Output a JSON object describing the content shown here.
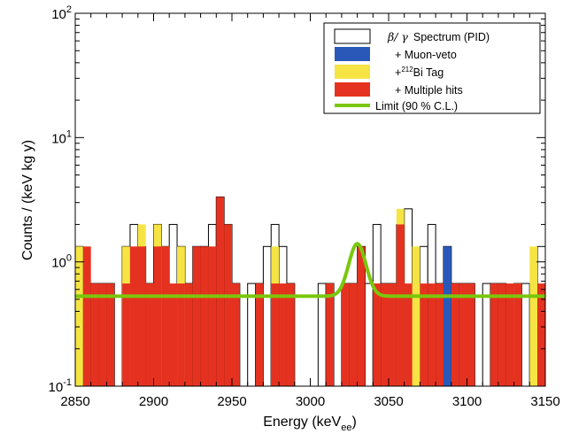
{
  "chart_data": {
    "type": "bar",
    "xlabel": "Energy (keV",
    "xlabel_sub": "ee",
    "xlabel_close": ")",
    "ylabel": "Counts / (keV kg y)",
    "xlim": [
      2850,
      3150
    ],
    "ylim": [
      0.1,
      100
    ],
    "yscale": "log",
    "bin_width": 5,
    "x_ticks": [
      "2850",
      "2900",
      "2950",
      "3000",
      "3050",
      "3100",
      "3150"
    ],
    "y_ticks": [
      {
        "base": "10",
        "exp": "-1"
      },
      {
        "base": "10",
        "exp": "0"
      },
      {
        "base": "10",
        "exp": "1"
      },
      {
        "base": "10",
        "exp": "2"
      }
    ],
    "legend_position": "top-right",
    "legend": [
      {
        "label": "Spectrum (PID)",
        "greek": "β/ γ",
        "color": "#ffffff"
      },
      {
        "label": "+ Muon-veto",
        "color": "#2a58b8"
      },
      {
        "label": "Bi Tag",
        "prefix": "+",
        "sup": "212",
        "color": "#f5e444"
      },
      {
        "label": "+ Multiple hits",
        "color": "#e53220"
      },
      {
        "label": "Limit (90 % C.L.)",
        "color": "#7ac70c"
      }
    ],
    "series": [
      {
        "name": "Spectrum (PID)",
        "color": "#ffffff",
        "bins": [
          [
            2850,
            1.33
          ],
          [
            2855,
            0.67
          ],
          [
            2860,
            0.67
          ],
          [
            2865,
            0.67
          ],
          [
            2870,
            0.67
          ],
          [
            2880,
            1.33
          ],
          [
            2885,
            2.0
          ],
          [
            2890,
            1.33
          ],
          [
            2895,
            0.67
          ],
          [
            2900,
            2.0
          ],
          [
            2905,
            1.33
          ],
          [
            2910,
            2.0
          ],
          [
            2915,
            1.33
          ],
          [
            2920,
            0.67
          ],
          [
            2925,
            1.33
          ],
          [
            2930,
            1.33
          ],
          [
            2935,
            2.0
          ],
          [
            2940,
            3.33
          ],
          [
            2945,
            2.0
          ],
          [
            2950,
            0.67
          ],
          [
            2960,
            0.67
          ],
          [
            2965,
            0.67
          ],
          [
            2970,
            1.33
          ],
          [
            2975,
            2.0
          ],
          [
            2980,
            1.33
          ],
          [
            2985,
            0.67
          ],
          [
            3005,
            0.67
          ],
          [
            3010,
            0.67
          ],
          [
            3020,
            0.67
          ],
          [
            3025,
            0.67
          ],
          [
            3030,
            1.33
          ],
          [
            3035,
            0.67
          ],
          [
            3040,
            2.0
          ],
          [
            3045,
            0.67
          ],
          [
            3050,
            0.67
          ],
          [
            3055,
            2.0
          ],
          [
            3060,
            2.67
          ],
          [
            3065,
            0.67
          ],
          [
            3070,
            1.33
          ],
          [
            3075,
            2.0
          ],
          [
            3080,
            0.67
          ],
          [
            3085,
            1.33
          ],
          [
            3090,
            0.67
          ],
          [
            3095,
            0.67
          ],
          [
            3100,
            0.67
          ],
          [
            3110,
            0.67
          ],
          [
            3115,
            0.67
          ],
          [
            3120,
            0.67
          ],
          [
            3130,
            0.67
          ],
          [
            3135,
            0.67
          ],
          [
            3140,
            0.67
          ],
          [
            3145,
            1.33
          ]
        ]
      },
      {
        "name": "+ Muon-veto",
        "color": "#2a58b8",
        "bins": [
          [
            3085,
            1.33
          ]
        ]
      },
      {
        "name": "Bi Tag",
        "color": "#f5e444",
        "bins": [
          [
            2850,
            1.33
          ],
          [
            2880,
            1.33
          ],
          [
            2890,
            2.0
          ],
          [
            2900,
            2.0
          ],
          [
            2905,
            1.33
          ],
          [
            2915,
            1.33
          ],
          [
            2975,
            1.33
          ],
          [
            3055,
            2.67
          ],
          [
            3065,
            1.33
          ],
          [
            3130,
            0.67
          ],
          [
            3140,
            1.33
          ]
        ]
      },
      {
        "name": "+ Multiple hits",
        "color": "#e53220",
        "bins": [
          [
            2855,
            1.33
          ],
          [
            2860,
            0.67
          ],
          [
            2865,
            0.67
          ],
          [
            2870,
            0.67
          ],
          [
            2880,
            0.67
          ],
          [
            2885,
            1.33
          ],
          [
            2890,
            1.33
          ],
          [
            2895,
            0.67
          ],
          [
            2900,
            1.33
          ],
          [
            2905,
            1.33
          ],
          [
            2910,
            0.67
          ],
          [
            2915,
            0.67
          ],
          [
            2920,
            0.67
          ],
          [
            2925,
            1.33
          ],
          [
            2930,
            1.33
          ],
          [
            2935,
            1.33
          ],
          [
            2940,
            3.33
          ],
          [
            2945,
            2.0
          ],
          [
            2950,
            0.67
          ],
          [
            2965,
            0.67
          ],
          [
            2975,
            0.67
          ],
          [
            2980,
            0.67
          ],
          [
            2985,
            0.67
          ],
          [
            3010,
            0.67
          ],
          [
            3020,
            0.67
          ],
          [
            3025,
            0.67
          ],
          [
            3030,
            1.33
          ],
          [
            3040,
            0.67
          ],
          [
            3045,
            0.67
          ],
          [
            3050,
            0.67
          ],
          [
            3055,
            2.0
          ],
          [
            3060,
            0.67
          ],
          [
            3070,
            0.67
          ],
          [
            3075,
            0.67
          ],
          [
            3080,
            0.67
          ],
          [
            3090,
            0.67
          ],
          [
            3095,
            0.67
          ],
          [
            3100,
            0.67
          ],
          [
            3115,
            0.67
          ],
          [
            3120,
            0.67
          ],
          [
            3125,
            0.67
          ],
          [
            3130,
            0.67
          ],
          [
            3145,
            0.67
          ]
        ]
      }
    ],
    "limit_curve": {
      "name": "Limit (90 % C.L.)",
      "color": "#7ac70c",
      "baseline": 0.53,
      "peak_x": 3030,
      "peak_y": 1.4,
      "sigma": 5.5
    }
  }
}
